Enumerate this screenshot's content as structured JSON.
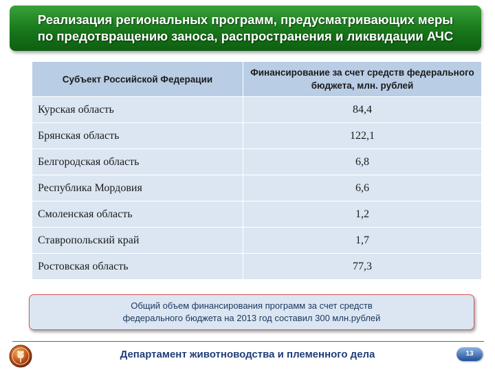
{
  "title": {
    "line1": "Реализация региональных программ, предусматривающих меры",
    "line2": "по предотвращению заноса, распространения и ликвидации АЧС"
  },
  "table": {
    "headers": [
      "Субъект Российской Федерации",
      "Финансирование за счет средств федерального бюджета, млн. рублей"
    ],
    "rows": [
      {
        "region": "Курская область",
        "amount": "84,4"
      },
      {
        "region": "Брянская область",
        "amount": "122,1"
      },
      {
        "region": "Белгородская область",
        "amount": "6,8"
      },
      {
        "region": "Республика Мордовия",
        "amount": "6,6"
      },
      {
        "region": "Смоленская область",
        "amount": "1,2"
      },
      {
        "region": "Ставропольский край",
        "amount": "1,7"
      },
      {
        "region": "Ростовская область",
        "amount": "77,3"
      }
    ]
  },
  "summary": {
    "line1": "Общий объем финансирования программ за счет средств",
    "line2": "федерального бюджета на 2013 год составил 300 млн.рублей"
  },
  "footer": {
    "department": "Департамент животноводства и племенного дела",
    "page_number": "13",
    "logo_icon": "wheat-emblem-icon"
  },
  "colors": {
    "title_green": "#17771a",
    "header_blue": "#b9cde5",
    "row_blue": "#dce6f2",
    "summary_border": "#d2555a",
    "footer_text": "#1f3d7a"
  }
}
